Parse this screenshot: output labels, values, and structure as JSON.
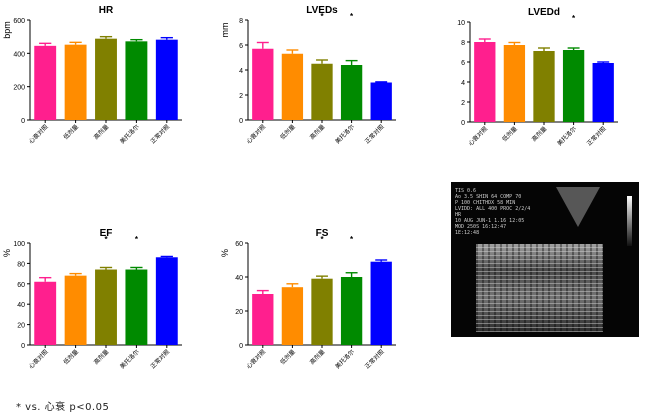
{
  "chart_data": [
    {
      "type": "bar",
      "title": "HR",
      "ylabel": "bpm",
      "ylim": [
        0,
        600
      ],
      "yticks": [
        0,
        200,
        400,
        600
      ],
      "categories": [
        "心衰对照",
        "低剂量",
        "高剂量",
        "美托洛尔",
        "正常对照"
      ],
      "values": [
        445,
        452,
        488,
        472,
        482
      ],
      "errors": [
        15,
        14,
        12,
        10,
        12
      ],
      "stars": []
    },
    {
      "type": "bar",
      "title": "LVEDs",
      "ylabel": "mm",
      "ylim": [
        0,
        8
      ],
      "yticks": [
        0,
        2,
        4,
        6,
        8
      ],
      "categories": [
        "心衰对照",
        "低剂量",
        "高剂量",
        "美托洛尔",
        "正常对照"
      ],
      "values": [
        5.7,
        5.3,
        4.5,
        4.4,
        3.0
      ],
      "errors": [
        0.5,
        0.3,
        0.3,
        0.35,
        0.05
      ],
      "stars": [
        2,
        3
      ]
    },
    {
      "type": "bar",
      "title": "LVEDd",
      "ylabel": "",
      "ylim": [
        0,
        10
      ],
      "yticks": [
        0,
        2,
        4,
        6,
        8,
        10
      ],
      "categories": [
        "心衰对照",
        "低剂量",
        "高剂量",
        "美托洛尔",
        "正常对照"
      ],
      "values": [
        8.0,
        7.7,
        7.1,
        7.2,
        5.9
      ],
      "errors": [
        0.3,
        0.25,
        0.3,
        0.2,
        0.1
      ],
      "stars": [
        3
      ]
    },
    {
      "type": "bar",
      "title": "EF",
      "ylabel": "%",
      "ylim": [
        0,
        100
      ],
      "yticks": [
        0,
        20,
        40,
        60,
        80,
        100
      ],
      "categories": [
        "心衰对照",
        "低剂量",
        "高剂量",
        "美托洛尔",
        "正常对照"
      ],
      "values": [
        62,
        68,
        74,
        74,
        86
      ],
      "errors": [
        4,
        2,
        2,
        2,
        0.8
      ],
      "stars": [
        2,
        3
      ]
    },
    {
      "type": "bar",
      "title": "FS",
      "ylabel": "%",
      "ylim": [
        0,
        60
      ],
      "yticks": [
        0,
        20,
        40,
        60
      ],
      "categories": [
        "心衰对照",
        "低剂量",
        "高剂量",
        "美托洛尔",
        "正常对照"
      ],
      "values": [
        30,
        34,
        39,
        40,
        49
      ],
      "errors": [
        2,
        2,
        1.5,
        2.5,
        1
      ],
      "stars": [
        2,
        3
      ]
    }
  ],
  "colors": [
    "#ff1f8e",
    "#ff8c00",
    "#808000",
    "#008a00",
    "#0000ff"
  ],
  "star_symbol": "*",
  "footnote": "* vs. 心衰  p<0.05",
  "echo": {
    "header": [
      "TIS 0.6",
      "Ao 3.5  SHIN 64 COMP 70",
      "P 100 CHITHDX 58 MIN",
      "LVIDD: ALL 400 PROC 2/2/4",
      "HR",
      "10 AUG JUN-1  1.16 12:05",
      "MOD 250S          16:12:47",
      "                   1E:12:48"
    ]
  }
}
